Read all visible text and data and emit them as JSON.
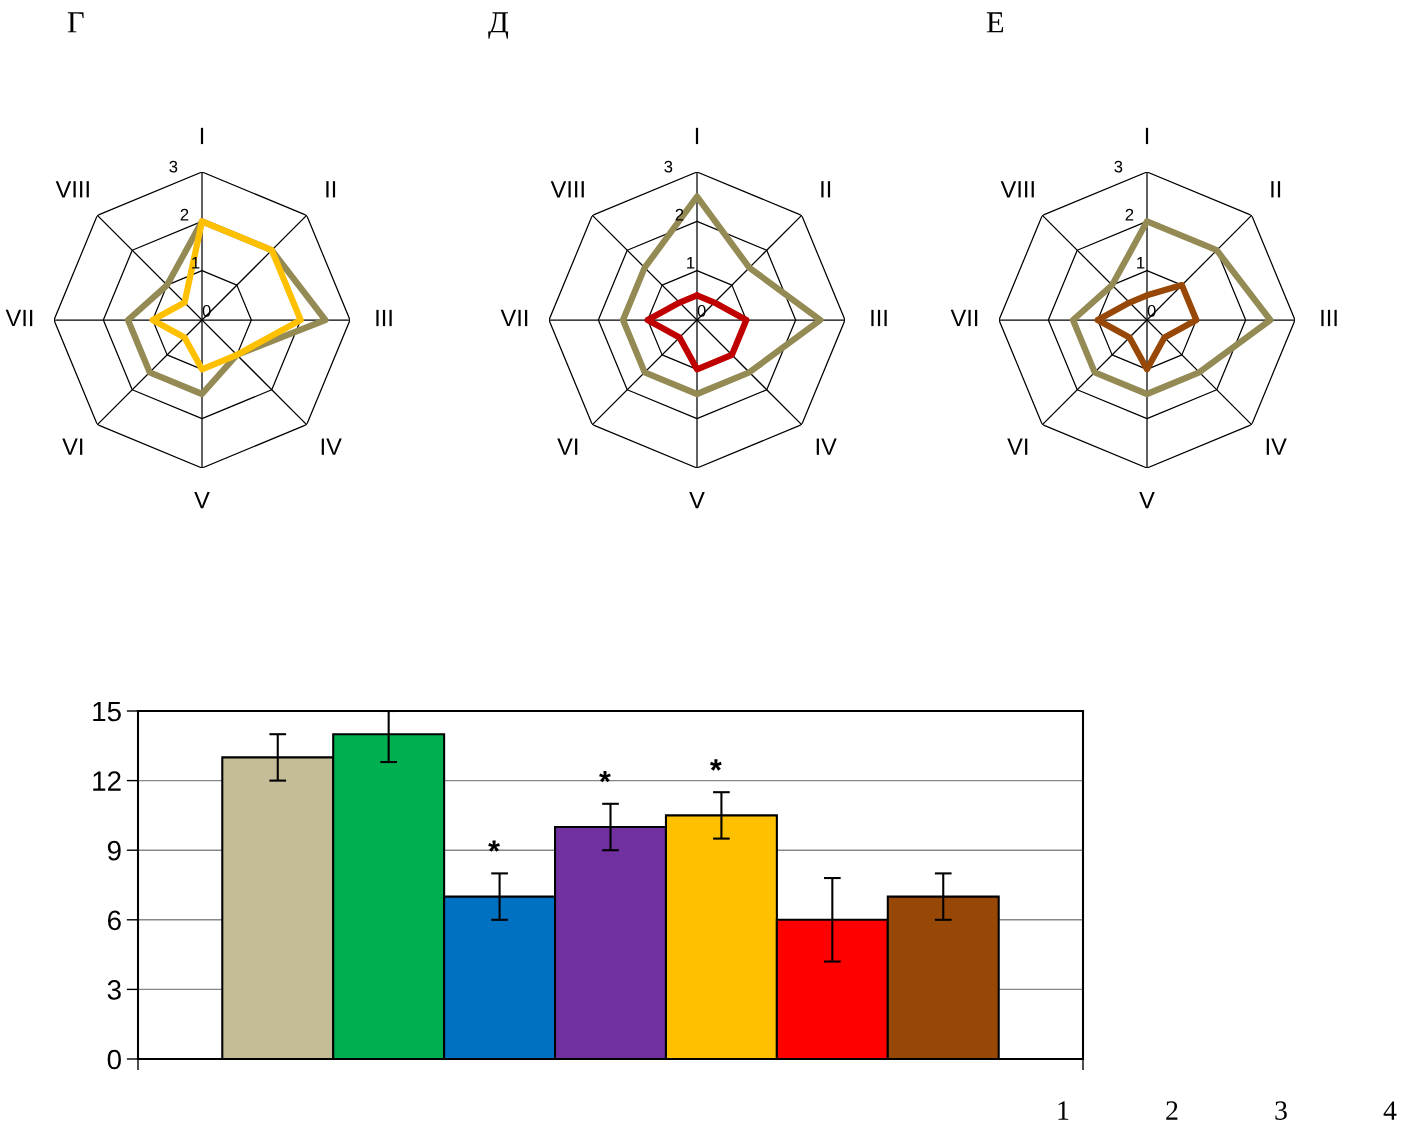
{
  "chart_data": [
    {
      "type": "radar",
      "title": "Г",
      "categories": [
        "I",
        "II",
        "III",
        "IV",
        "V",
        "VI",
        "VII",
        "VIII"
      ],
      "ylim": [
        0,
        3
      ],
      "yticks": [
        0,
        1,
        2,
        3
      ],
      "grid": true,
      "series": [
        {
          "color": "#948a54",
          "values": [
            2,
            2,
            2.5,
            1,
            1.5,
            1.5,
            1.5,
            1
          ]
        },
        {
          "color": "#ffc000",
          "values": [
            2,
            2,
            2,
            1,
            1,
            0.5,
            1,
            0.5
          ]
        }
      ]
    },
    {
      "type": "radar",
      "title": "Д",
      "categories": [
        "I",
        "II",
        "III",
        "IV",
        "V",
        "VI",
        "VII",
        "VIII"
      ],
      "ylim": [
        0,
        3
      ],
      "yticks": [
        0,
        1,
        2,
        3
      ],
      "grid": true,
      "series": [
        {
          "color": "#948a54",
          "values": [
            2.5,
            1.5,
            2.5,
            1.5,
            1.5,
            1.5,
            1.5,
            1.5
          ]
        },
        {
          "color": "#c00000",
          "values": [
            0.5,
            0.5,
            1,
            1,
            1,
            0.5,
            1,
            0.5
          ]
        }
      ]
    },
    {
      "type": "radar",
      "title": "Е",
      "categories": [
        "I",
        "II",
        "III",
        "IV",
        "V",
        "VI",
        "VII",
        "VIII"
      ],
      "ylim": [
        0,
        3
      ],
      "yticks": [
        0,
        1,
        2,
        3
      ],
      "grid": true,
      "series": [
        {
          "color": "#948a54",
          "values": [
            2,
            2,
            2.5,
            1.5,
            1.5,
            1.5,
            1.5,
            1
          ]
        },
        {
          "color": "#974706",
          "values": [
            0.5,
            1,
            1,
            0.5,
            1,
            0.5,
            1,
            0.5
          ]
        }
      ]
    },
    {
      "type": "bar",
      "categories": [
        null,
        null,
        null,
        null,
        null,
        null,
        null
      ],
      "values": [
        13,
        14,
        7,
        10,
        10.5,
        6,
        7
      ],
      "colors": [
        "#c4bd97",
        "#00b050",
        "#0070c0",
        "#7030a0",
        "#ffc000",
        "#ff0000",
        "#974706"
      ],
      "errors": [
        1,
        [
          12.8,
          15
        ],
        1,
        1,
        1,
        1.8,
        1
      ],
      "value_labels": [
        null,
        null,
        "*",
        "*",
        "*",
        null,
        null
      ],
      "ylim": [
        0,
        15
      ],
      "yticks": [
        0,
        3,
        6,
        9,
        12,
        15
      ],
      "grid": "y",
      "annotations": [
        "1",
        "2",
        "3",
        "4"
      ]
    }
  ]
}
